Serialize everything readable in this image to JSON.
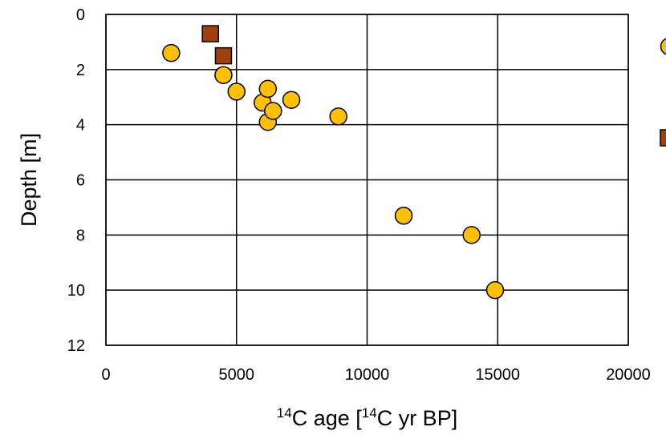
{
  "chart_data": {
    "type": "scatter",
    "title": "",
    "xlabel": {
      "parts": [
        {
          "text": "14",
          "sup": true
        },
        {
          "text": "C age [",
          "sup": false
        },
        {
          "text": "14",
          "sup": true
        },
        {
          "text": "C yr BP]",
          "sup": false
        }
      ]
    },
    "ylabel": "Depth [m]",
    "xlim": [
      0,
      20000
    ],
    "ylim": [
      0,
      12
    ],
    "y_inverted": true,
    "grid": true,
    "x_ticks": [
      "0",
      "5000",
      "10000",
      "15000",
      "20000"
    ],
    "y_ticks": [
      "0",
      "2",
      "4",
      "6",
      "8",
      "10",
      "12"
    ],
    "legend_position": "right (cropped)",
    "series": [
      {
        "marker": "circle",
        "color": "#FFC000",
        "points": [
          {
            "x": 2500,
            "y": 1.4
          },
          {
            "x": 4500,
            "y": 2.2
          },
          {
            "x": 5000,
            "y": 2.8
          },
          {
            "x": 6000,
            "y": 3.2
          },
          {
            "x": 6200,
            "y": 2.7
          },
          {
            "x": 6200,
            "y": 3.9
          },
          {
            "x": 6400,
            "y": 3.5
          },
          {
            "x": 7100,
            "y": 3.1
          },
          {
            "x": 8900,
            "y": 3.7
          },
          {
            "x": 11400,
            "y": 7.3
          },
          {
            "x": 14000,
            "y": 8.0
          },
          {
            "x": 14900,
            "y": 10.0
          }
        ]
      },
      {
        "marker": "square",
        "color": "#A0410D",
        "points": [
          {
            "x": 4000,
            "y": 0.7
          },
          {
            "x": 4500,
            "y": 1.5
          }
        ]
      }
    ]
  }
}
